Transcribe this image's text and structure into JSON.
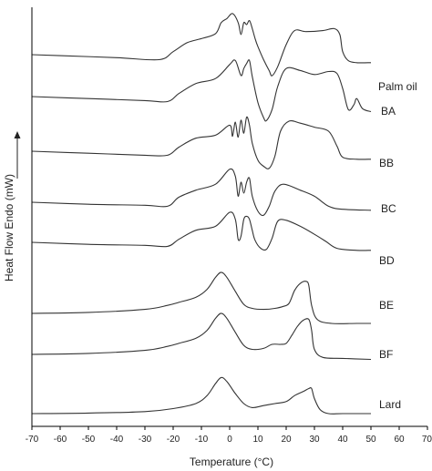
{
  "chart_data": {
    "type": "line",
    "title": "",
    "xlabel": "Temperature (°C)",
    "ylabel": "Heat Flow Endo (mW)",
    "xlim": [
      -70,
      70
    ],
    "x_ticks": [
      "-70",
      "-60",
      "-50",
      "-40",
      "-30",
      "-20",
      "-10",
      "0",
      "10",
      "20",
      "30",
      "40",
      "50",
      "60",
      "70"
    ],
    "grid": false,
    "legend": "none",
    "line_color": "#333333",
    "series": [
      {
        "name": "Palm oil",
        "points": [
          [
            -70,
            0
          ],
          [
            -60,
            -0.1
          ],
          [
            -40,
            -0.3
          ],
          [
            -25,
            -0.5
          ],
          [
            -20,
            0.3
          ],
          [
            -15,
            1.2
          ],
          [
            -10,
            1.6
          ],
          [
            -5,
            2.1
          ],
          [
            -3,
            3.2
          ],
          [
            -1,
            3.6
          ],
          [
            1,
            4.1
          ],
          [
            3,
            3.2
          ],
          [
            4,
            2.0
          ],
          [
            5,
            3.2
          ],
          [
            6,
            3.0
          ],
          [
            7,
            3.4
          ],
          [
            8,
            2.6
          ],
          [
            9,
            1.6
          ],
          [
            10,
            0.8
          ],
          [
            12,
            -0.5
          ],
          [
            14,
            -1.6
          ],
          [
            15,
            -2.1
          ],
          [
            17,
            -1.2
          ],
          [
            20,
            1.0
          ],
          [
            23,
            2.4
          ],
          [
            27,
            2.3
          ],
          [
            33,
            2.4
          ],
          [
            37,
            2.6
          ],
          [
            39,
            2.0
          ],
          [
            40,
            0.3
          ],
          [
            42,
            -0.6
          ],
          [
            45,
            -0.8
          ],
          [
            50,
            -0.8
          ]
        ]
      },
      {
        "name": "BA",
        "points": [
          [
            -70,
            0
          ],
          [
            -50,
            -0.2
          ],
          [
            -30,
            -0.4
          ],
          [
            -22,
            -0.5
          ],
          [
            -18,
            0.3
          ],
          [
            -12,
            1.3
          ],
          [
            -5,
            1.8
          ],
          [
            0,
            3.2
          ],
          [
            2,
            3.6
          ],
          [
            4,
            2.1
          ],
          [
            5,
            2.8
          ],
          [
            6,
            3.3
          ],
          [
            7,
            3.6
          ],
          [
            8,
            2.0
          ],
          [
            10,
            -0.6
          ],
          [
            12,
            -2.1
          ],
          [
            13,
            -2.4
          ],
          [
            15,
            -1.3
          ],
          [
            17,
            1.0
          ],
          [
            20,
            2.8
          ],
          [
            25,
            2.6
          ],
          [
            30,
            2.2
          ],
          [
            35,
            2.5
          ],
          [
            38,
            2.3
          ],
          [
            40,
            0.8
          ],
          [
            42,
            -1.3
          ],
          [
            44,
            -0.8
          ],
          [
            45,
            -0.2
          ],
          [
            47,
            -1.2
          ],
          [
            50,
            -1.5
          ]
        ]
      },
      {
        "name": "BB",
        "points": [
          [
            -70,
            0
          ],
          [
            -50,
            -0.2
          ],
          [
            -30,
            -0.4
          ],
          [
            -22,
            -0.4
          ],
          [
            -18,
            0.4
          ],
          [
            -12,
            1.3
          ],
          [
            -5,
            1.6
          ],
          [
            0,
            2.6
          ],
          [
            1,
            1.5
          ],
          [
            2,
            2.9
          ],
          [
            3,
            1.4
          ],
          [
            4,
            3.1
          ],
          [
            5,
            1.8
          ],
          [
            6,
            3.4
          ],
          [
            7,
            2.6
          ],
          [
            8,
            0.8
          ],
          [
            10,
            -0.9
          ],
          [
            12,
            -1.5
          ],
          [
            14,
            -1.7
          ],
          [
            16,
            -0.5
          ],
          [
            18,
            2.0
          ],
          [
            21,
            3.0
          ],
          [
            25,
            2.8
          ],
          [
            30,
            2.4
          ],
          [
            35,
            2.0
          ],
          [
            38,
            0.5
          ],
          [
            40,
            -0.6
          ],
          [
            45,
            -0.8
          ],
          [
            50,
            -0.8
          ]
        ]
      },
      {
        "name": "BC",
        "points": [
          [
            -70,
            0
          ],
          [
            -50,
            -0.2
          ],
          [
            -30,
            -0.3
          ],
          [
            -22,
            -0.4
          ],
          [
            -18,
            0.5
          ],
          [
            -12,
            1.2
          ],
          [
            -5,
            1.8
          ],
          [
            0,
            3.3
          ],
          [
            2,
            2.6
          ],
          [
            3,
            0.6
          ],
          [
            4,
            2.0
          ],
          [
            5,
            0.9
          ],
          [
            6,
            2.0
          ],
          [
            7,
            2.4
          ],
          [
            8,
            0.6
          ],
          [
            10,
            -0.9
          ],
          [
            12,
            -1.3
          ],
          [
            14,
            -0.4
          ],
          [
            16,
            1.1
          ],
          [
            19,
            1.8
          ],
          [
            25,
            1.2
          ],
          [
            30,
            0.6
          ],
          [
            35,
            -0.4
          ],
          [
            40,
            -0.7
          ],
          [
            50,
            -0.8
          ]
        ]
      },
      {
        "name": "BD",
        "points": [
          [
            -70,
            0
          ],
          [
            -50,
            -0.2
          ],
          [
            -30,
            -0.3
          ],
          [
            -22,
            -0.4
          ],
          [
            -18,
            0.3
          ],
          [
            -12,
            1.2
          ],
          [
            -5,
            1.6
          ],
          [
            0,
            3.0
          ],
          [
            2,
            2.3
          ],
          [
            3,
            0.3
          ],
          [
            4,
            0.6
          ],
          [
            5,
            2.3
          ],
          [
            6,
            2.6
          ],
          [
            7,
            2.3
          ],
          [
            8,
            1.2
          ],
          [
            9,
            0.2
          ],
          [
            11,
            -0.6
          ],
          [
            13,
            -0.7
          ],
          [
            15,
            0.4
          ],
          [
            17,
            2.1
          ],
          [
            20,
            2.2
          ],
          [
            25,
            1.6
          ],
          [
            30,
            0.8
          ],
          [
            34,
            0.1
          ],
          [
            38,
            -0.6
          ],
          [
            45,
            -0.8
          ],
          [
            50,
            -0.8
          ]
        ]
      },
      {
        "name": "BE",
        "points": [
          [
            -70,
            0
          ],
          [
            -50,
            0.1
          ],
          [
            -30,
            0.4
          ],
          [
            -22,
            0.8
          ],
          [
            -18,
            1.1
          ],
          [
            -12,
            1.6
          ],
          [
            -8,
            2.4
          ],
          [
            -5,
            3.6
          ],
          [
            -3,
            4.1
          ],
          [
            -1,
            3.6
          ],
          [
            2,
            2.2
          ],
          [
            5,
            0.9
          ],
          [
            8,
            0.5
          ],
          [
            12,
            0.4
          ],
          [
            16,
            0.5
          ],
          [
            19,
            0.7
          ],
          [
            21,
            1.0
          ],
          [
            23,
            2.3
          ],
          [
            25,
            3.0
          ],
          [
            27,
            3.2
          ],
          [
            28,
            2.8
          ],
          [
            29,
            0.8
          ],
          [
            31,
            -0.6
          ],
          [
            36,
            -1.0
          ],
          [
            45,
            -1.0
          ],
          [
            50,
            -1.0
          ]
        ]
      },
      {
        "name": "BF",
        "points": [
          [
            -70,
            0
          ],
          [
            -50,
            0.1
          ],
          [
            -30,
            0.4
          ],
          [
            -22,
            0.8
          ],
          [
            -18,
            1.1
          ],
          [
            -12,
            1.6
          ],
          [
            -8,
            2.4
          ],
          [
            -5,
            3.6
          ],
          [
            -3,
            4.1
          ],
          [
            -1,
            3.6
          ],
          [
            2,
            2.2
          ],
          [
            5,
            0.9
          ],
          [
            8,
            0.5
          ],
          [
            12,
            0.6
          ],
          [
            15,
            1.0
          ],
          [
            18,
            1.0
          ],
          [
            20,
            1.1
          ],
          [
            22,
            1.9
          ],
          [
            24,
            2.8
          ],
          [
            26,
            3.4
          ],
          [
            28,
            3.5
          ],
          [
            29,
            2.4
          ],
          [
            30,
            0.5
          ],
          [
            33,
            -0.3
          ],
          [
            40,
            -0.4
          ],
          [
            50,
            -0.5
          ]
        ]
      },
      {
        "name": "Lard",
        "points": [
          [
            -70,
            0
          ],
          [
            -50,
            0.05
          ],
          [
            -30,
            0.2
          ],
          [
            -20,
            0.5
          ],
          [
            -12,
            1.0
          ],
          [
            -8,
            1.8
          ],
          [
            -5,
            3.0
          ],
          [
            -3,
            3.6
          ],
          [
            -1,
            3.2
          ],
          [
            2,
            2.0
          ],
          [
            5,
            1.0
          ],
          [
            8,
            0.6
          ],
          [
            12,
            0.8
          ],
          [
            16,
            1.0
          ],
          [
            20,
            1.2
          ],
          [
            23,
            1.8
          ],
          [
            26,
            2.2
          ],
          [
            28,
            2.5
          ],
          [
            29,
            2.5
          ],
          [
            30,
            1.5
          ],
          [
            32,
            0.4
          ],
          [
            35,
            0.0
          ],
          [
            40,
            0.0
          ],
          [
            50,
            0.0
          ]
        ]
      }
    ]
  }
}
